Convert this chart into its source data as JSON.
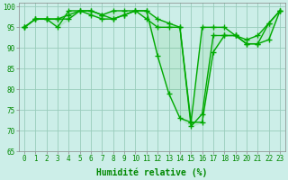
{
  "title": "",
  "xlabel": "Humidité relative (%)",
  "ylabel": "",
  "background_color": "#cceee8",
  "grid_color": "#99ccbb",
  "line_color": "#00aa00",
  "text_color": "#008800",
  "xlim": [
    -0.5,
    23.5
  ],
  "ylim": [
    65,
    101
  ],
  "yticks": [
    65,
    70,
    75,
    80,
    85,
    90,
    95,
    100
  ],
  "xticks": [
    0,
    1,
    2,
    3,
    4,
    5,
    6,
    7,
    8,
    9,
    10,
    11,
    12,
    13,
    14,
    15,
    16,
    17,
    18,
    19,
    20,
    21,
    22,
    23
  ],
  "series": [
    [
      95,
      97,
      97,
      97,
      97,
      99,
      98,
      97,
      97,
      98,
      99,
      99,
      88,
      79,
      73,
      72,
      72,
      89,
      93,
      93,
      91,
      91,
      92,
      99
    ],
    [
      95,
      97,
      97,
      97,
      98,
      99,
      99,
      98,
      99,
      99,
      99,
      97,
      95,
      95,
      95,
      72,
      95,
      95,
      95,
      93,
      92,
      93,
      96,
      99
    ],
    [
      95,
      97,
      97,
      95,
      99,
      99,
      99,
      98,
      97,
      98,
      99,
      99,
      97,
      96,
      95,
      71,
      74,
      93,
      93,
      93,
      91,
      91,
      96,
      99
    ]
  ],
  "marker": "+",
  "markersize": 4,
  "linewidth": 1.0,
  "xlabel_fontsize": 7,
  "tick_fontsize": 5.5
}
